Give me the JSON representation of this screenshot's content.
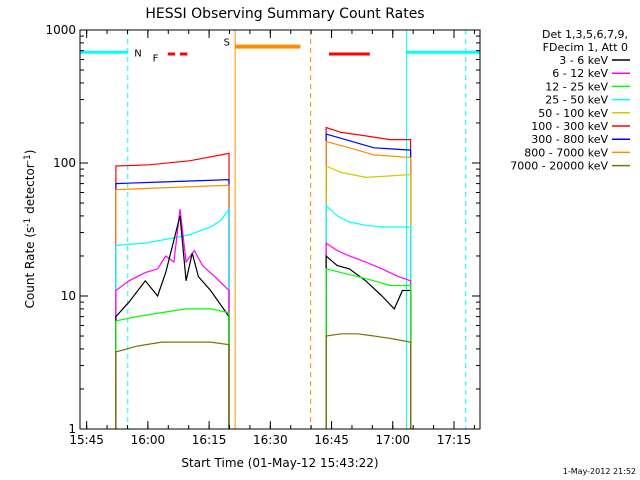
{
  "chart_data": {
    "type": "line",
    "title": "HESSI Observing Summary Count Rates",
    "xlabel": "Start Time (01-May-12 15:43:22)",
    "ylabel_parts": {
      "pre": "Count Rate (s",
      "sup1": "-1",
      "mid": " detector",
      "sup2": "-1",
      "post": ")"
    },
    "x_unit": "minutes since 15:43:22",
    "xlim": [
      0,
      98
    ],
    "ylim": [
      1,
      1000
    ],
    "yscale": "log",
    "grid": false,
    "x_ticks": [
      {
        "value": 1.63,
        "label": "15:45"
      },
      {
        "value": 16.63,
        "label": "16:00"
      },
      {
        "value": 31.63,
        "label": "16:15"
      },
      {
        "value": 46.63,
        "label": "16:30"
      },
      {
        "value": 61.63,
        "label": "16:45"
      },
      {
        "value": 76.63,
        "label": "17:00"
      },
      {
        "value": 91.63,
        "label": "17:15"
      }
    ],
    "y_ticks": [
      {
        "value": 1,
        "label": "1"
      },
      {
        "value": 10,
        "label": "10"
      },
      {
        "value": 100,
        "label": "100"
      },
      {
        "value": 1000,
        "label": "1000"
      }
    ],
    "legend": {
      "placement": "right",
      "header": [
        "Det 1,3,5,6,7,9,",
        "FDecim 1, Att 0"
      ],
      "entries": [
        {
          "name": "3 - 6 keV",
          "color": "#000000"
        },
        {
          "name": "6 - 12 keV",
          "color": "#ff00ff"
        },
        {
          "name": "12 - 25 keV",
          "color": "#00ff00"
        },
        {
          "name": "25 - 50 keV",
          "color": "#00ffff"
        },
        {
          "name": "50 - 100 keV",
          "color": "#d4c800"
        },
        {
          "name": "100 - 300 keV",
          "color": "#ff0000"
        },
        {
          "name": "300 - 800 keV",
          "color": "#0000ff"
        },
        {
          "name": "800 - 7000 keV",
          "color": "#ff8c00"
        },
        {
          "name": "7000 - 20000 keV",
          "color": "#807000"
        }
      ]
    },
    "series": [
      {
        "name": "100 - 300 keV",
        "color": "#ff0000",
        "segments": [
          {
            "x": [
              8.8,
              17,
              27,
              36.5
            ],
            "y": [
              95,
              97,
              104,
              118
            ]
          },
          {
            "x": [
              60.3,
              64,
              70,
              76,
              81
            ],
            "y": [
              185,
              170,
              160,
              150,
              150
            ]
          }
        ]
      },
      {
        "name": "300 - 800 keV",
        "color": "#0000ff",
        "segments": [
          {
            "x": [
              8.8,
              20,
              36.5
            ],
            "y": [
              70,
              72,
              75
            ]
          },
          {
            "x": [
              60.3,
              65,
              72,
              81
            ],
            "y": [
              165,
              150,
              130,
              125
            ]
          }
        ]
      },
      {
        "name": "800 - 7000 keV",
        "color": "#ff8c00",
        "segments": [
          {
            "x": [
              8.8,
              20,
              36.5
            ],
            "y": [
              63,
              65,
              68
            ]
          },
          {
            "x": [
              60.3,
              66,
              72,
              81
            ],
            "y": [
              145,
              130,
              115,
              110
            ]
          }
        ]
      },
      {
        "name": "50 - 100 keV",
        "color": "#d4c800",
        "segments": [
          {
            "x": [
              60.3,
              64,
              70,
              76,
              81
            ],
            "y": [
              95,
              85,
              78,
              80,
              82
            ]
          }
        ]
      },
      {
        "name": "25 - 50 keV",
        "color": "#00ffff",
        "segments": [
          {
            "x": [
              8.8,
              16,
              22,
              27,
              32,
              34.5,
              36.5
            ],
            "y": [
              24,
              25,
              27,
              29,
              33,
              37,
              45
            ]
          },
          {
            "x": [
              60.3,
              63,
              66,
              70,
              74,
              78,
              81
            ],
            "y": [
              48,
              40,
              36,
              34,
              33,
              33,
              33
            ]
          }
        ]
      },
      {
        "name": "6 - 12 keV",
        "color": "#ff00ff",
        "segments": [
          {
            "x": [
              8.8,
              12,
              16,
              19,
              21,
              23,
              24.5,
              26,
              28,
              30,
              33,
              36.5
            ],
            "y": [
              11,
              13,
              15,
              16,
              20,
              18,
              45,
              18,
              22,
              17,
              14,
              11
            ]
          },
          {
            "x": [
              60.3,
              63,
              66,
              70,
              74,
              78,
              81
            ],
            "y": [
              25,
              22,
              20,
              18,
              16,
              14,
              13
            ]
          }
        ]
      },
      {
        "name": "3 - 6 keV",
        "color": "#000000",
        "segments": [
          {
            "x": [
              8.8,
              12,
              16,
              19,
              21,
              24.5,
              26,
              27.5,
              29,
              32,
              36.5
            ],
            "y": [
              7,
              9,
              13,
              10,
              15,
              40,
              13,
              21,
              14,
              11,
              7
            ]
          },
          {
            "x": [
              60.3,
              63,
              66,
              70,
              74,
              77,
              79,
              81
            ],
            "y": [
              20,
              17,
              16,
              13,
              10,
              8,
              11,
              11
            ]
          }
        ]
      },
      {
        "name": "12 - 25 keV",
        "color": "#00ff00",
        "segments": [
          {
            "x": [
              8.8,
              14,
              20,
              26,
              32,
              36.5
            ],
            "y": [
              6.5,
              7,
              7.5,
              8,
              8,
              7.5
            ]
          },
          {
            "x": [
              60.3,
              64,
              68,
              72,
              76,
              81
            ],
            "y": [
              16,
              15,
              14,
              13,
              12,
              12
            ]
          }
        ]
      },
      {
        "name": "7000 - 20000 keV",
        "color": "#807000",
        "segments": [
          {
            "x": [
              8.8,
              14,
              20,
              26,
              32,
              36.5
            ],
            "y": [
              3.8,
              4.2,
              4.5,
              4.5,
              4.5,
              4.3
            ]
          },
          {
            "x": [
              60.3,
              64,
              68,
              72,
              76,
              81
            ],
            "y": [
              5,
              5.2,
              5.2,
              5,
              4.8,
              4.5
            ]
          }
        ]
      }
    ],
    "annotations": {
      "attenuator_labels": [
        {
          "text": "N",
          "color": "#00ffff"
        },
        {
          "text": "F",
          "color": "#ff0000"
        },
        {
          "text": "S",
          "color": "#ff8c00"
        }
      ],
      "night_bars": {
        "color": "#00ffff",
        "level": 680,
        "ranges": [
          [
            0,
            11.7
          ],
          [
            80,
            98
          ]
        ]
      },
      "night_boundaries": [
        {
          "x": 11.7,
          "style": "dashed",
          "color": "#00ffff"
        },
        {
          "x": 80,
          "style": "solid",
          "color": "#00ffff"
        },
        {
          "x": 94.5,
          "style": "dashed",
          "color": "#00ffff"
        }
      ],
      "saa_bar": {
        "color": "#ff8c00",
        "level": 750,
        "range": [
          38,
          54
        ]
      },
      "saa_boundaries": [
        {
          "x": 38,
          "style": "solid",
          "color": "#ff8c00"
        },
        {
          "x": 56.5,
          "style": "dashed",
          "color": "#ff8c00"
        }
      ],
      "flare_bar": {
        "color": "#ff0000",
        "level": 660,
        "range": [
          61,
          71
        ]
      },
      "flare_dashes": {
        "color": "#ff0000",
        "level": 660,
        "ranges": [
          [
            21.5,
            23.3
          ],
          [
            24.5,
            26.3
          ]
        ]
      }
    },
    "footer": "1-May-2012 21:52"
  }
}
